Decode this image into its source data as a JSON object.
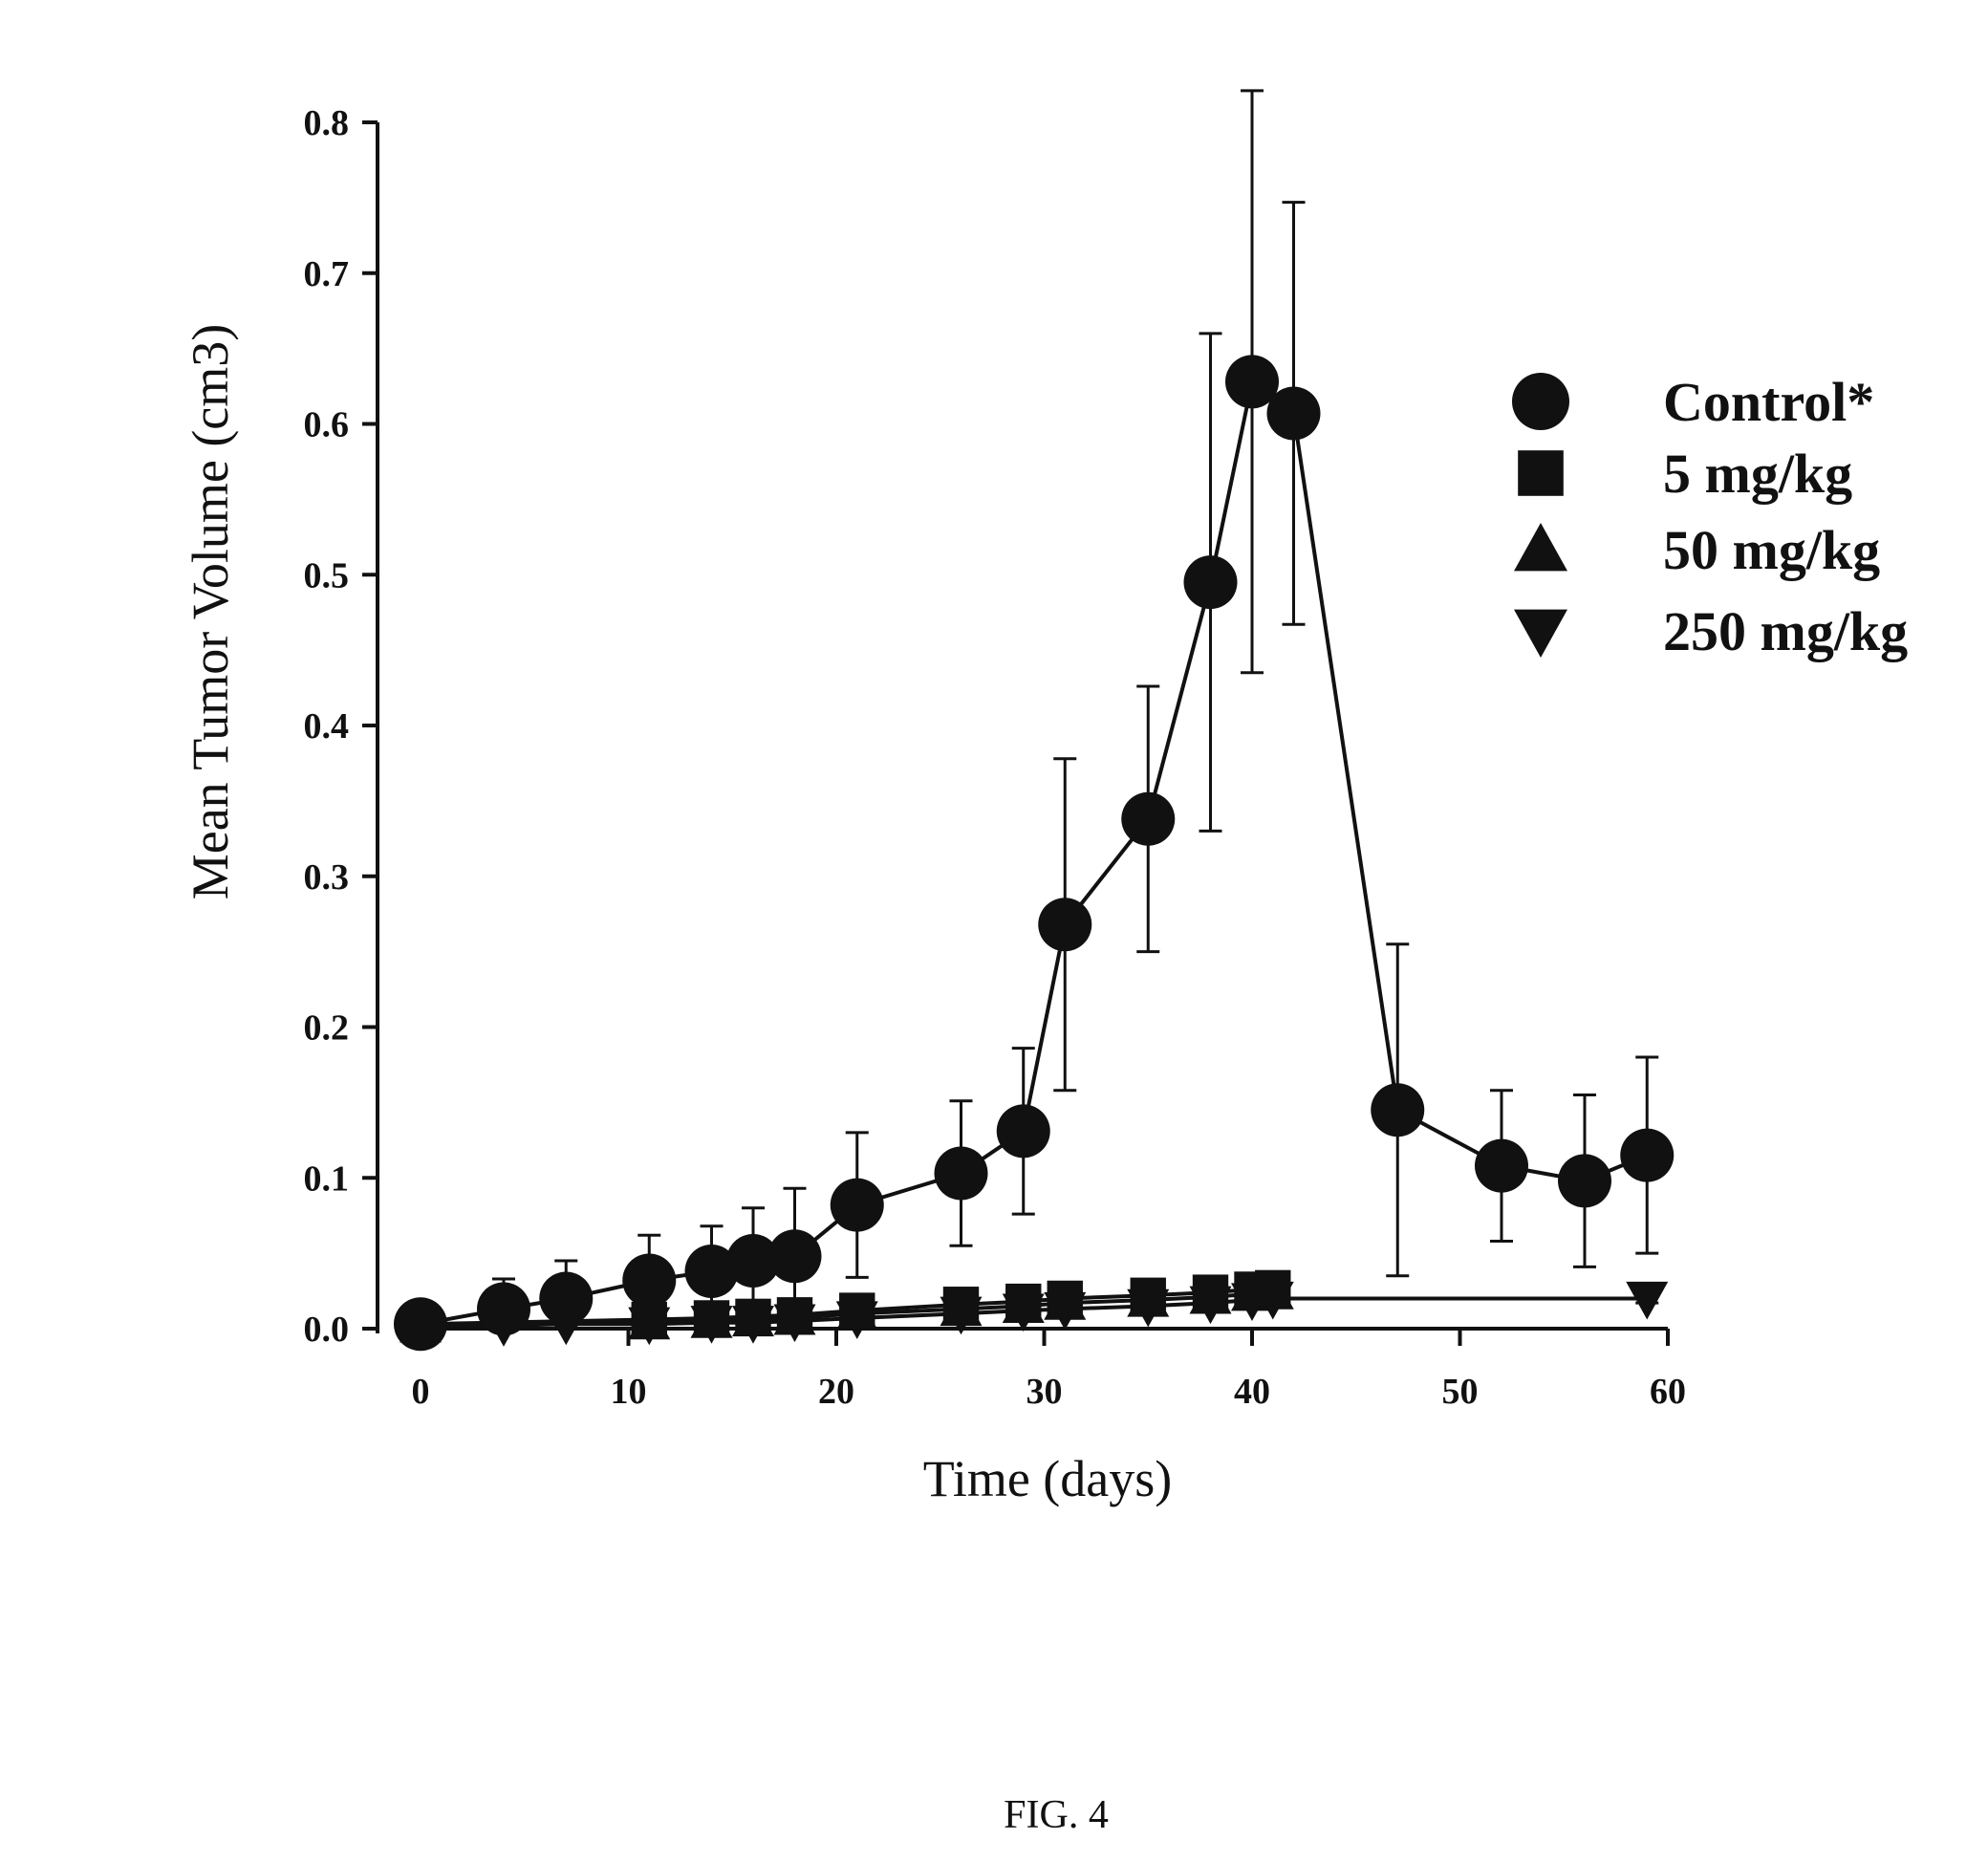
{
  "figure": {
    "caption": "FIG. 4"
  },
  "chart_data": {
    "type": "line",
    "xlabel": "Time (days)",
    "ylabel": "Mean Tumor Volume (cm3)",
    "xlim": [
      0,
      60
    ],
    "ylim": [
      0,
      0.8
    ],
    "xticks": [
      0,
      10,
      20,
      30,
      40,
      50,
      60
    ],
    "yticks": [
      "0.0",
      "0.1",
      "0.2",
      "0.3",
      "0.4",
      "0.5",
      "0.6",
      "0.7",
      "0.8"
    ],
    "grid": false,
    "legend_position": "right",
    "error_bars": true,
    "series": [
      {
        "name": "Control*",
        "marker": "circle",
        "x": [
          0,
          4,
          7,
          11,
          14,
          16,
          18,
          21,
          26,
          29,
          31,
          35,
          38,
          40,
          42,
          47,
          52,
          56,
          59
        ],
        "y": [
          0.003,
          0.013,
          0.02,
          0.032,
          0.038,
          0.045,
          0.048,
          0.082,
          0.103,
          0.131,
          0.268,
          0.338,
          0.495,
          0.628,
          0.607,
          0.145,
          0.108,
          0.098,
          0.115
        ],
        "error": [
          0.003,
          0.02,
          0.025,
          0.03,
          0.03,
          0.035,
          0.045,
          0.048,
          0.048,
          0.055,
          0.11,
          0.088,
          0.165,
          0.193,
          0.14,
          0.11,
          0.05,
          0.057,
          0.065
        ]
      },
      {
        "name": "5 mg/kg",
        "marker": "square",
        "x": [
          0,
          11,
          14,
          16,
          18,
          21,
          26,
          29,
          31,
          35,
          38,
          40,
          41
        ],
        "y": [
          0.003,
          0.006,
          0.007,
          0.008,
          0.009,
          0.012,
          0.016,
          0.018,
          0.02,
          0.022,
          0.024,
          0.026,
          0.027
        ],
        "error": [
          0.002,
          0.002,
          0.002,
          0.002,
          0.002,
          0.003,
          0.003,
          0.003,
          0.003,
          0.004,
          0.004,
          0.004,
          0.004
        ]
      },
      {
        "name": "50 mg/kg",
        "marker": "triangle-up",
        "x": [
          0,
          11,
          14,
          16,
          18,
          21,
          26,
          29,
          31,
          35,
          38,
          40,
          41
        ],
        "y": [
          0.002,
          0.004,
          0.005,
          0.006,
          0.007,
          0.01,
          0.013,
          0.015,
          0.017,
          0.019,
          0.021,
          0.023,
          0.024
        ],
        "error": [
          0.002,
          0.002,
          0.002,
          0.002,
          0.002,
          0.002,
          0.003,
          0.003,
          0.003,
          0.003,
          0.004,
          0.004,
          0.004
        ]
      },
      {
        "name": "250 mg/kg",
        "marker": "triangle-down",
        "x": [
          0,
          4,
          7,
          11,
          14,
          16,
          18,
          21,
          26,
          29,
          31,
          35,
          38,
          40,
          41,
          59
        ],
        "y": [
          0.001,
          0.002,
          0.003,
          0.003,
          0.004,
          0.004,
          0.005,
          0.007,
          0.01,
          0.012,
          0.013,
          0.015,
          0.017,
          0.019,
          0.02,
          0.02
        ],
        "error": [
          0.001,
          0.001,
          0.001,
          0.002,
          0.002,
          0.002,
          0.002,
          0.002,
          0.002,
          0.003,
          0.003,
          0.003,
          0.003,
          0.003,
          0.003,
          0.003
        ]
      }
    ]
  }
}
